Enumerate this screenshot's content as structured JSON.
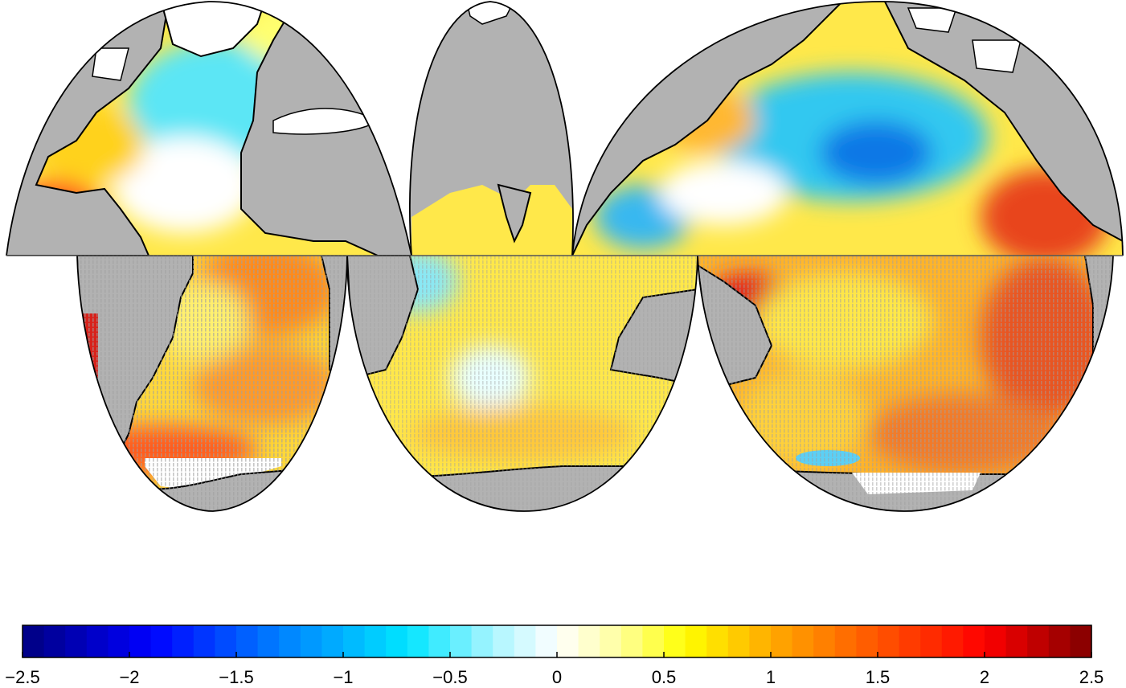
{
  "map": {
    "projection": "interrupted Goode homolosine (ocean-centered lobes)",
    "colors": {
      "land": "#b2b2b2",
      "sea_ice": "#ffffff",
      "coastline": "#000000",
      "stipple": "#a0a0a0",
      "equator": "#555555"
    }
  },
  "colorbar": {
    "min": -2.5,
    "max": 2.5,
    "segments": 50,
    "ticks": [
      {
        "value": -2.5,
        "label": "−2.5"
      },
      {
        "value": -2,
        "label": "−2"
      },
      {
        "value": -1.5,
        "label": "−1.5"
      },
      {
        "value": -1,
        "label": "−1"
      },
      {
        "value": -0.5,
        "label": "−0.5"
      },
      {
        "value": 0,
        "label": "0"
      },
      {
        "value": 0.5,
        "label": "0.5"
      },
      {
        "value": 1,
        "label": "1"
      },
      {
        "value": 1.5,
        "label": "1.5"
      },
      {
        "value": 2,
        "label": "2"
      },
      {
        "value": 2.5,
        "label": "2.5"
      }
    ],
    "color_stops": [
      {
        "value": -2.5,
        "color": "#00007f"
      },
      {
        "value": -1.9,
        "color": "#0000ff"
      },
      {
        "value": -1.3,
        "color": "#0080ff"
      },
      {
        "value": -0.7,
        "color": "#00e5ff"
      },
      {
        "value": -0.3,
        "color": "#aaf5ff"
      },
      {
        "value": 0,
        "color": "#ffffff"
      },
      {
        "value": 0.3,
        "color": "#ffff9a"
      },
      {
        "value": 0.6,
        "color": "#ffff00"
      },
      {
        "value": 1.0,
        "color": "#ffaa00"
      },
      {
        "value": 1.5,
        "color": "#ff5500"
      },
      {
        "value": 2.0,
        "color": "#ff0000"
      },
      {
        "value": 2.5,
        "color": "#7f0000"
      }
    ]
  }
}
